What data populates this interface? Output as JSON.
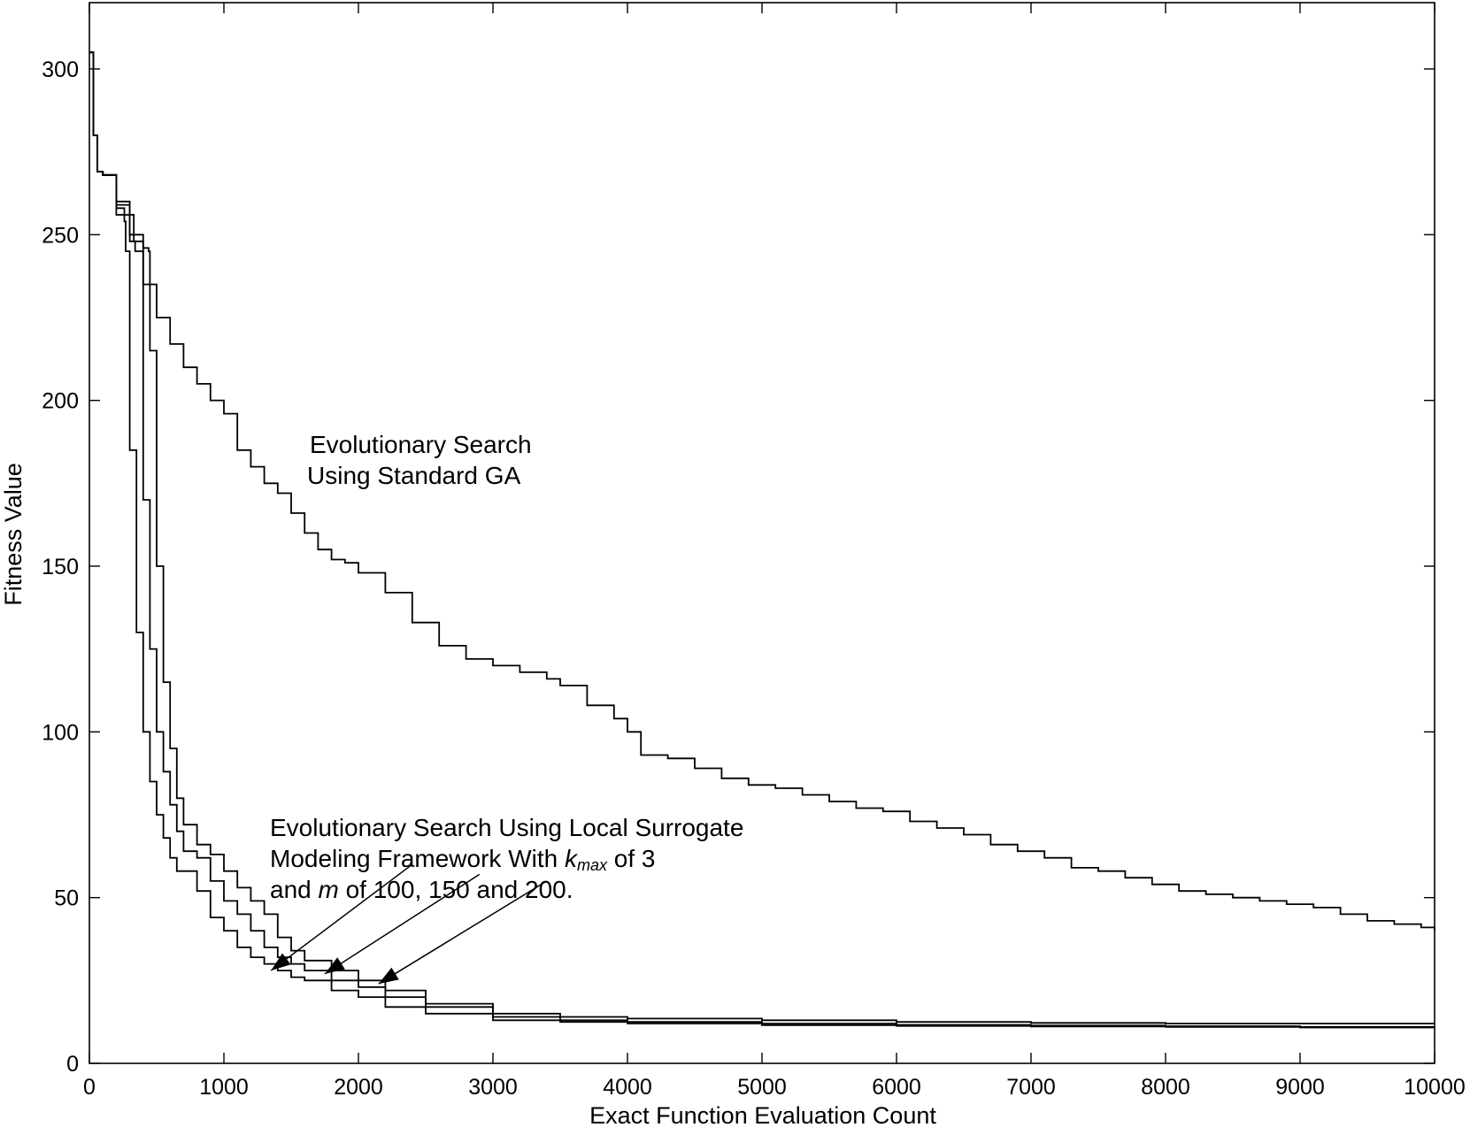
{
  "chart_data": {
    "type": "line",
    "title": "",
    "xlabel": "Exact  Function Evaluation Count",
    "ylabel": "Fitness Value",
    "xlim": [
      0,
      10000
    ],
    "ylim": [
      0,
      320
    ],
    "x_ticks": [
      "0",
      "1000",
      "2000",
      "3000",
      "4000",
      "5000",
      "6000",
      "7000",
      "8000",
      "9000",
      "10000"
    ],
    "y_ticks": [
      "0",
      "50",
      "100",
      "150",
      "200",
      "250",
      "300"
    ],
    "grid": false,
    "legend": "none",
    "series": [
      {
        "x": [
          0,
          30,
          60,
          100,
          200,
          300,
          400,
          500,
          600,
          700,
          800,
          900,
          1000,
          1100,
          1200,
          1300,
          1400,
          1500,
          1600,
          1700,
          1800,
          1900,
          2000,
          2200,
          2400,
          2600,
          2800,
          3000,
          3200,
          3400,
          3500,
          3700,
          3900,
          4000,
          4100,
          4300,
          4500,
          4700,
          4900,
          5100,
          5300,
          5500,
          5700,
          5900,
          6100,
          6300,
          6500,
          6700,
          6900,
          7100,
          7300,
          7500,
          7700,
          7900,
          8100,
          8300,
          8500,
          8700,
          8900,
          9100,
          9300,
          9500,
          9700,
          9900,
          10000
        ],
        "y": [
          305,
          280,
          269,
          268,
          260,
          250,
          235,
          225,
          217,
          210,
          205,
          200,
          196,
          185,
          180,
          175,
          172,
          166,
          160,
          155,
          152,
          151,
          148,
          142,
          133,
          126,
          122,
          120,
          118,
          116,
          114,
          108,
          104,
          100,
          93,
          92,
          89,
          86,
          84,
          83,
          81,
          79,
          77,
          76,
          73,
          71,
          69,
          66,
          64,
          62,
          59,
          58,
          56,
          54,
          52,
          51,
          50,
          49,
          48,
          47,
          45,
          43,
          42,
          41,
          40
        ]
      },
      {
        "x": [
          0,
          30,
          60,
          100,
          200,
          260,
          270,
          300,
          350,
          400,
          450,
          500,
          550,
          600,
          650,
          700,
          800,
          900,
          1000,
          1100,
          1200,
          1300,
          1400,
          1500,
          1600,
          1800,
          2000,
          2200,
          2500,
          3000,
          3500,
          4000,
          5000,
          6000,
          7000,
          8000,
          9000,
          10000
        ],
        "y": [
          305,
          280,
          269,
          268,
          258,
          254,
          245,
          185,
          130,
          100,
          85,
          75,
          68,
          62,
          58,
          58,
          52,
          44,
          40,
          35,
          32,
          30,
          28,
          26,
          25,
          22,
          20,
          17,
          15,
          13,
          12.5,
          12,
          11.5,
          11.3,
          11.1,
          11,
          10.8,
          10.6
        ]
      },
      {
        "x": [
          0,
          30,
          60,
          100,
          200,
          330,
          340,
          400,
          450,
          500,
          550,
          600,
          650,
          700,
          800,
          900,
          1000,
          1100,
          1200,
          1300,
          1400,
          1500,
          1600,
          1800,
          2000,
          2200,
          2500,
          3000,
          3500,
          4000,
          5000,
          6000,
          7000,
          8000,
          9000,
          10000
        ],
        "y": [
          305,
          280,
          269,
          268,
          256,
          248,
          245,
          170,
          125,
          100,
          88,
          78,
          70,
          64,
          62,
          55,
          49,
          45,
          40,
          35,
          32,
          30,
          28,
          25,
          23,
          20,
          17,
          14,
          13,
          12.5,
          12,
          11.6,
          11.4,
          11.2,
          11,
          10.9
        ]
      },
      {
        "x": [
          0,
          30,
          60,
          100,
          200,
          300,
          400,
          440,
          450,
          500,
          550,
          600,
          650,
          700,
          800,
          900,
          1000,
          1100,
          1200,
          1300,
          1400,
          1500,
          1600,
          1800,
          2000,
          2200,
          2500,
          3000,
          3500,
          4000,
          5000,
          6000,
          7000,
          8000,
          9000,
          10000
        ],
        "y": [
          305,
          280,
          269,
          268,
          259,
          248,
          246,
          245,
          215,
          150,
          115,
          95,
          80,
          72,
          66,
          63,
          58,
          53,
          49,
          45,
          38,
          34,
          31,
          28,
          25,
          22,
          18,
          15,
          14,
          13.5,
          13,
          12.5,
          12.2,
          12,
          12,
          12
        ]
      }
    ],
    "annotations": [
      {
        "lines": [
          "Evolutionary Search",
          "Using Standard GA"
        ]
      },
      {
        "lines": [
          "Evolutionary Search Using Local Surrogate",
          "Modeling Framework With ",
          "k",
          "max",
          " of 3",
          "and ",
          "m",
          " of 100, 150 and 200."
        ]
      }
    ]
  }
}
